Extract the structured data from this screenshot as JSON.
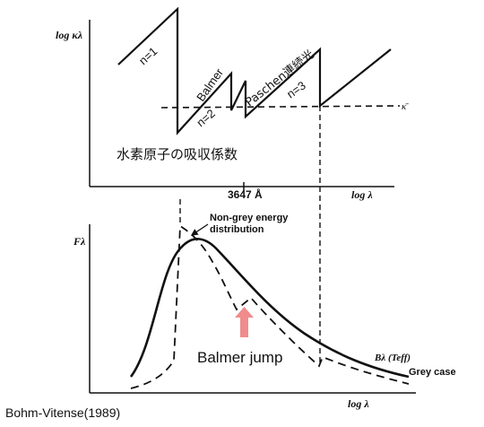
{
  "top_panel": {
    "y_axis_label": "log κλ",
    "x_axis_label": "log λ",
    "edge_label": "3647 Å",
    "kappa_bar_label": "κ̄",
    "series_labels": {
      "n1": "n=1",
      "n2": "n=2",
      "n3": "n=3"
    },
    "continuum_labels": {
      "balmer": "Balmer",
      "paschen": "Paschen連続光"
    },
    "caption_jp": "水素原子の吸収係数"
  },
  "bottom_panel": {
    "y_axis_label": "Fλ",
    "x_axis_label": "log λ",
    "non_grey_label_line1": "Non-grey energy",
    "non_grey_label_line2": "distribution",
    "planck_label": "Bλ (Teff)",
    "grey_label": "Grey case",
    "jump_label": "Balmer jump"
  },
  "citation": "Bohm-Vitense(1989)",
  "colors": {
    "annotation_blue": "#2e86c1",
    "jump_red": "#e03b3b",
    "arrow_pink": "#f08c8c",
    "ink": "#111111"
  }
}
